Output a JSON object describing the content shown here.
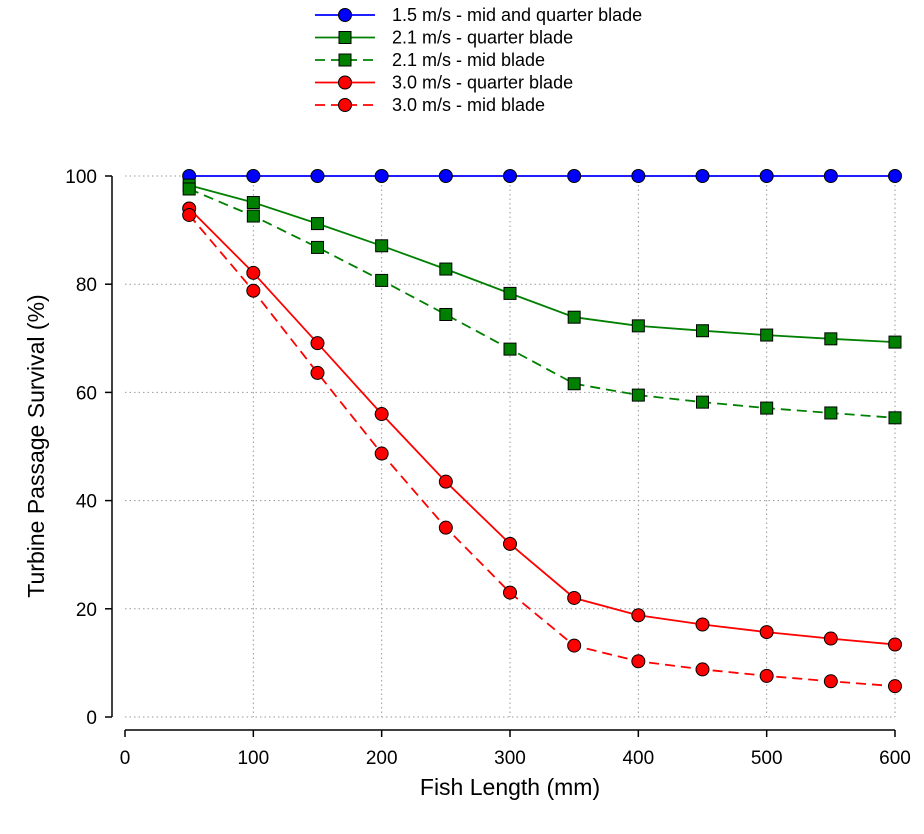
{
  "chart_data": {
    "type": "line",
    "title": "",
    "xlabel": "Fish Length (mm)",
    "ylabel": "Turbine Passage Survival (%)",
    "xlim": [
      0,
      600
    ],
    "ylim": [
      0,
      100
    ],
    "xticks": [
      0,
      100,
      200,
      300,
      400,
      500,
      600
    ],
    "yticks": [
      0,
      20,
      40,
      60,
      80,
      100
    ],
    "grid": true,
    "legend_position": "top",
    "x": [
      50,
      100,
      150,
      200,
      250,
      300,
      350,
      400,
      450,
      500,
      550,
      600
    ],
    "series": [
      {
        "name": "1.5 m/s - mid and quarter blade",
        "color": "#0000ff",
        "marker": "circle",
        "line_style": "solid",
        "values": [
          100,
          100,
          100,
          100,
          100,
          100,
          100,
          100,
          100,
          100,
          100,
          100
        ]
      },
      {
        "name": "2.1 m/s - quarter blade",
        "color": "#008000",
        "marker": "square",
        "line_style": "solid",
        "values": [
          98.3,
          95.1,
          91.2,
          87.1,
          82.8,
          78.3,
          73.9,
          72.3,
          71.4,
          70.6,
          69.9,
          69.3
        ]
      },
      {
        "name": "2.1 m/s - mid blade",
        "color": "#008000",
        "marker": "square",
        "line_style": "dashed",
        "values": [
          97.6,
          92.6,
          86.8,
          80.7,
          74.4,
          68.0,
          61.6,
          59.5,
          58.2,
          57.1,
          56.2,
          55.3
        ]
      },
      {
        "name": "3.0 m/s - quarter blade",
        "color": "#ff0000",
        "marker": "circle",
        "line_style": "solid",
        "values": [
          94.0,
          82.1,
          69.1,
          56.0,
          43.5,
          32.0,
          22.0,
          18.8,
          17.1,
          15.7,
          14.5,
          13.4
        ]
      },
      {
        "name": "3.0 m/s - mid blade",
        "color": "#ff0000",
        "marker": "circle",
        "line_style": "dashed",
        "values": [
          92.8,
          78.8,
          63.6,
          48.7,
          35.0,
          23.0,
          13.2,
          10.3,
          8.8,
          7.6,
          6.6,
          5.7
        ]
      }
    ]
  }
}
